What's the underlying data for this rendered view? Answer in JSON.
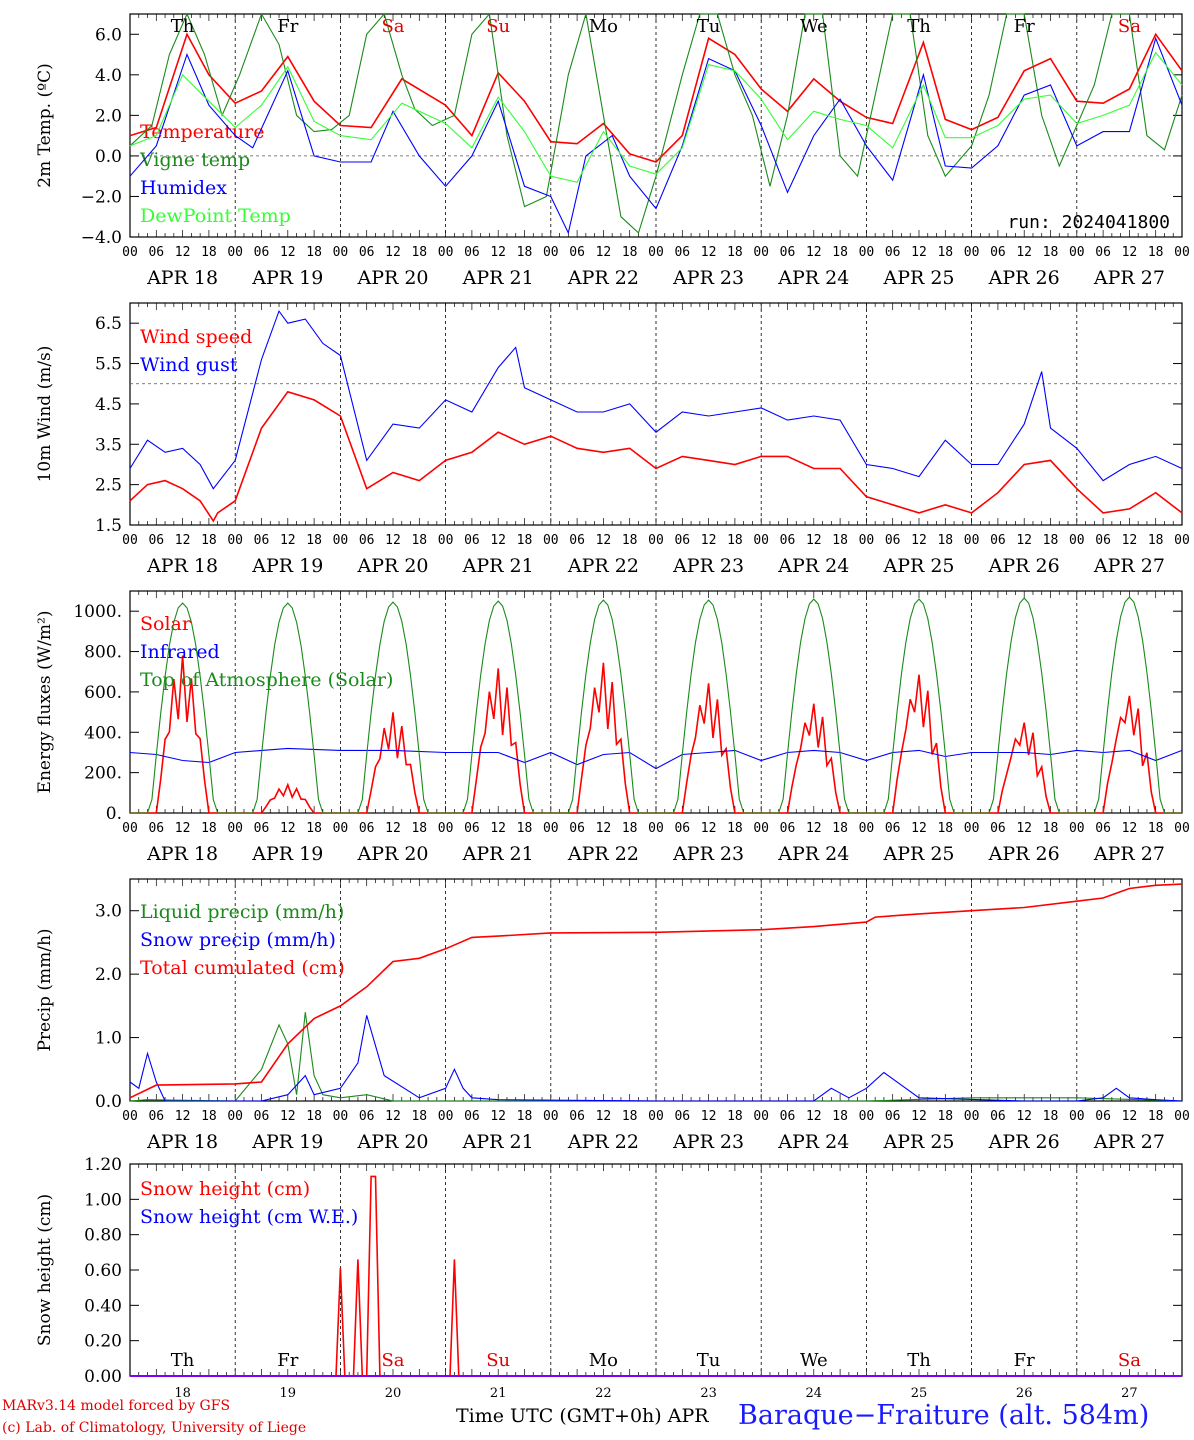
{
  "run_label": "run: 2024041800",
  "x_axis_title": "Time UTC (GMT+0h)",
  "month_label": "APR",
  "station": "Baraque−Fraiture (alt. 584m)",
  "credit_line1": "MARv3.14 model forced by GFS",
  "credit_line2": "(c) Lab. of Climatology, University of Liege",
  "hour_ticks": [
    "00",
    "06",
    "12",
    "18"
  ],
  "day_labels": [
    "APR 18",
    "APR 19",
    "APR 20",
    "APR 21",
    "APR 22",
    "APR 23",
    "APR 24",
    "APR 25",
    "APR 26",
    "APR 27"
  ],
  "day_numbers": [
    "18",
    "19",
    "20",
    "21",
    "22",
    "23",
    "24",
    "25",
    "26",
    "27"
  ],
  "weekdays": [
    {
      "label": "Th",
      "color": "#000000"
    },
    {
      "label": "Fr",
      "color": "#000000"
    },
    {
      "label": "Sa",
      "color": "#e00000"
    },
    {
      "label": "Su",
      "color": "#e00000"
    },
    {
      "label": "Mo",
      "color": "#000000"
    },
    {
      "label": "Tu",
      "color": "#000000"
    },
    {
      "label": "We",
      "color": "#000000"
    },
    {
      "label": "Th",
      "color": "#000000"
    },
    {
      "label": "Fr",
      "color": "#000000"
    },
    {
      "label": "Sa",
      "color": "#e00000"
    }
  ],
  "chart_data": [
    {
      "type": "line",
      "ylabel": "2m Temp. (ºC)",
      "ylim": [
        -4,
        7
      ],
      "yticks": [
        "−4.0",
        "−2.0",
        "0.0",
        "2.0",
        "4.0",
        "6.0"
      ],
      "ytick_values": [
        -4,
        -2,
        0,
        2,
        4,
        6
      ],
      "ref_line": 0,
      "x_unit": "hours since APR 18 00 UTC",
      "series": [
        {
          "name": "Temperature",
          "color": "#ff0000",
          "x": [
            0,
            6,
            13,
            18,
            24,
            30,
            36,
            42,
            48,
            55,
            62,
            72,
            78,
            84,
            90,
            96,
            102,
            108,
            114,
            120,
            126,
            132,
            138,
            144,
            150,
            156,
            162,
            168,
            174,
            181,
            186,
            192,
            198,
            204,
            210,
            216,
            222,
            228,
            234,
            240
          ],
          "y": [
            1.0,
            1.4,
            6.0,
            4.0,
            2.6,
            3.2,
            4.9,
            2.7,
            1.5,
            1.4,
            3.8,
            2.5,
            1.0,
            4.1,
            2.7,
            0.7,
            0.6,
            1.6,
            0.1,
            -0.3,
            1.0,
            5.8,
            5.0,
            3.3,
            2.2,
            3.8,
            2.7,
            1.9,
            1.6,
            5.6,
            1.8,
            1.3,
            1.9,
            4.2,
            4.8,
            2.7,
            2.6,
            3.3,
            6.0,
            4.2
          ]
        },
        {
          "name": "Vigne temp",
          "color": "#1a8a1a",
          "x": [
            0,
            5,
            9,
            13,
            17,
            21,
            25,
            30,
            34,
            38,
            42,
            46,
            50,
            54,
            58,
            62,
            65,
            69,
            74,
            78,
            82,
            86,
            90,
            95,
            100,
            104,
            108,
            112,
            116,
            120,
            126,
            130,
            134,
            138,
            142,
            146,
            150,
            154,
            158,
            162,
            166,
            170,
            174,
            178,
            182,
            186,
            192,
            196,
            200,
            204,
            208,
            212,
            216,
            220,
            224,
            228,
            232,
            236,
            240
          ],
          "y": [
            0.5,
            1.5,
            5.0,
            7.0,
            5.0,
            2.0,
            4.0,
            7.0,
            5.5,
            2.0,
            1.2,
            1.3,
            2.0,
            6.0,
            7.0,
            4.0,
            2.3,
            1.5,
            2.0,
            6.0,
            7.0,
            1.0,
            -2.5,
            -2.0,
            4.0,
            7.0,
            2.0,
            -3.0,
            -3.8,
            -1.0,
            4.0,
            7.0,
            7.0,
            4.0,
            2.0,
            -1.5,
            2.0,
            7.0,
            7.0,
            0.0,
            -1.0,
            3.0,
            7.0,
            7.0,
            1.0,
            -1.0,
            0.5,
            3.0,
            7.0,
            7.0,
            2.0,
            -0.5,
            1.5,
            3.5,
            7.0,
            7.0,
            1.0,
            0.3,
            3.0
          ]
        },
        {
          "name": "Humidex",
          "color": "#0000ff",
          "x": [
            0,
            6,
            13,
            18,
            24,
            28,
            36,
            42,
            48,
            55,
            60,
            66,
            72,
            78,
            84,
            90,
            96,
            100,
            104,
            110,
            114,
            120,
            126,
            132,
            138,
            144,
            150,
            156,
            162,
            168,
            174,
            181,
            186,
            192,
            198,
            204,
            210,
            216,
            222,
            228,
            234,
            240
          ],
          "y": [
            -1.0,
            0.5,
            5.0,
            2.5,
            1.0,
            0.4,
            4.2,
            0.0,
            -0.3,
            -0.3,
            2.2,
            0.0,
            -1.5,
            0.0,
            2.7,
            -1.5,
            -2.0,
            -3.8,
            0.0,
            1.0,
            -1.0,
            -2.6,
            0.5,
            4.8,
            4.2,
            1.5,
            -1.8,
            1.0,
            2.8,
            0.5,
            -1.2,
            4.0,
            -0.5,
            -0.6,
            0.5,
            3.0,
            3.5,
            0.5,
            1.2,
            1.2,
            5.8,
            2.5
          ]
        },
        {
          "name": "DewPoint Temp",
          "color": "#33ff33",
          "x": [
            0,
            6,
            12,
            18,
            24,
            30,
            36,
            42,
            48,
            55,
            62,
            72,
            78,
            84,
            90,
            96,
            102,
            108,
            114,
            120,
            126,
            132,
            138,
            144,
            150,
            156,
            162,
            168,
            174,
            181,
            186,
            192,
            198,
            204,
            210,
            216,
            222,
            228,
            234,
            240
          ],
          "y": [
            0.5,
            1.0,
            4.0,
            2.7,
            1.4,
            2.5,
            4.4,
            1.7,
            1.0,
            0.8,
            2.6,
            1.6,
            0.4,
            2.9,
            1.2,
            -1.0,
            -1.3,
            1.2,
            -0.5,
            -0.9,
            0.4,
            4.5,
            4.2,
            2.8,
            0.8,
            2.2,
            1.8,
            1.5,
            0.4,
            3.5,
            0.9,
            0.9,
            1.5,
            2.8,
            3.0,
            1.6,
            2.0,
            2.5,
            5.1,
            3.5
          ]
        }
      ]
    },
    {
      "type": "line",
      "ylabel": "10m Wind (m/s)",
      "ylim": [
        1.5,
        7.0
      ],
      "yticks": [
        "1.5",
        "2.5",
        "3.5",
        "4.5",
        "5.5",
        "6.5"
      ],
      "ytick_values": [
        1.5,
        2.5,
        3.5,
        4.5,
        5.5,
        6.5
      ],
      "ref_line": 5.0,
      "series": [
        {
          "name": "Wind speed",
          "color": "#ff0000",
          "x": [
            0,
            4,
            8,
            12,
            16,
            19,
            20,
            24,
            30,
            36,
            42,
            48,
            54,
            60,
            66,
            72,
            78,
            84,
            90,
            96,
            102,
            108,
            114,
            120,
            126,
            132,
            138,
            144,
            150,
            156,
            162,
            168,
            174,
            180,
            186,
            192,
            198,
            204,
            210,
            216,
            222,
            228,
            234,
            240
          ],
          "y": [
            2.1,
            2.5,
            2.6,
            2.4,
            2.1,
            1.6,
            1.8,
            2.1,
            3.9,
            4.8,
            4.6,
            4.2,
            2.4,
            2.8,
            2.6,
            3.1,
            3.3,
            3.8,
            3.5,
            3.7,
            3.4,
            3.3,
            3.4,
            2.9,
            3.2,
            3.1,
            3.0,
            3.2,
            3.2,
            2.9,
            2.9,
            2.2,
            2.0,
            1.8,
            2.0,
            1.8,
            2.3,
            3.0,
            3.1,
            2.4,
            1.8,
            1.9,
            2.3,
            1.8
          ]
        },
        {
          "name": "Wind gust",
          "color": "#0000ff",
          "x": [
            0,
            4,
            8,
            12,
            16,
            19,
            24,
            30,
            34,
            36,
            40,
            44,
            48,
            54,
            60,
            66,
            72,
            78,
            84,
            88,
            90,
            96,
            102,
            108,
            114,
            120,
            126,
            132,
            138,
            144,
            150,
            156,
            162,
            168,
            174,
            180,
            186,
            192,
            198,
            204,
            208,
            210,
            216,
            222,
            228,
            234,
            240
          ],
          "y": [
            2.9,
            3.6,
            3.3,
            3.4,
            3.0,
            2.4,
            3.1,
            5.6,
            6.8,
            6.5,
            6.6,
            6.0,
            5.7,
            3.1,
            4.0,
            3.9,
            4.6,
            4.3,
            5.4,
            5.9,
            4.9,
            4.6,
            4.3,
            4.3,
            4.5,
            3.8,
            4.3,
            4.2,
            4.3,
            4.4,
            4.1,
            4.2,
            4.1,
            3.0,
            2.9,
            2.7,
            3.6,
            3.0,
            3.0,
            4.0,
            5.3,
            3.9,
            3.4,
            2.6,
            3.0,
            3.2,
            2.9
          ]
        }
      ]
    },
    {
      "type": "line",
      "ylabel": "Energy fluxes (W/m²)",
      "ylim": [
        0,
        1100
      ],
      "yticks": [
        "0.",
        "200.",
        "400.",
        "600.",
        "800.",
        "1000."
      ],
      "ytick_values": [
        0,
        200,
        400,
        600,
        800,
        1000
      ],
      "series": [
        {
          "name": "Solar",
          "color": "#ff0000",
          "peaks": [
            780,
            140,
            500,
            720,
            750,
            650,
            550,
            700,
            460,
            600
          ]
        },
        {
          "name": "Infrared",
          "color": "#0000ff",
          "x": [
            0,
            6,
            12,
            18,
            24,
            36,
            48,
            60,
            72,
            84,
            90,
            96,
            102,
            108,
            114,
            120,
            126,
            132,
            138,
            144,
            150,
            156,
            162,
            168,
            174,
            180,
            186,
            192,
            198,
            204,
            210,
            216,
            222,
            228,
            234,
            240
          ],
          "y": [
            300,
            290,
            260,
            250,
            300,
            320,
            310,
            310,
            300,
            300,
            250,
            300,
            240,
            290,
            300,
            220,
            290,
            300,
            310,
            260,
            300,
            310,
            300,
            260,
            300,
            310,
            280,
            300,
            300,
            300,
            290,
            310,
            300,
            310,
            260,
            310
          ]
        },
        {
          "name": "Top of Atmosphere (Solar)",
          "color": "#1a8a1a",
          "peaks": [
            1040,
            1040,
            1045,
            1050,
            1055,
            1055,
            1060,
            1060,
            1065,
            1070
          ]
        }
      ]
    },
    {
      "type": "line",
      "ylabel": "Precip (mm/h)",
      "ylim": [
        0,
        3.5
      ],
      "yticks": [
        "0.0",
        "1.0",
        "2.0",
        "3.0"
      ],
      "ytick_values": [
        0,
        1,
        2,
        3
      ],
      "series": [
        {
          "name": "Liquid precip (mm/h)",
          "color": "#1a8a1a",
          "x": [
            0,
            4,
            24,
            30,
            34,
            36,
            38,
            40,
            42,
            44,
            48,
            54,
            60,
            84,
            90,
            120,
            144,
            168,
            192,
            216,
            240
          ],
          "y": [
            0,
            0.02,
            0,
            0.5,
            1.2,
            0.9,
            0.1,
            1.4,
            0.4,
            0.1,
            0.05,
            0.1,
            0,
            0,
            0,
            0,
            0,
            0,
            0.05,
            0.05,
            0
          ]
        },
        {
          "name": "Snow precip (mm/h)",
          "color": "#0000ff",
          "x": [
            0,
            2,
            4,
            6,
            8,
            30,
            36,
            40,
            42,
            48,
            52,
            54,
            58,
            66,
            72,
            74,
            76,
            78,
            84,
            120,
            156,
            160,
            164,
            168,
            172,
            180,
            204,
            216,
            222,
            225,
            228,
            234,
            240
          ],
          "y": [
            0.3,
            0.2,
            0.75,
            0.3,
            0,
            0,
            0.1,
            0.4,
            0.1,
            0.2,
            0.6,
            1.35,
            0.4,
            0.05,
            0.2,
            0.5,
            0.2,
            0.05,
            0.02,
            0,
            0,
            0.2,
            0.05,
            0.2,
            0.45,
            0.05,
            0,
            0,
            0.05,
            0.2,
            0.05,
            0.02,
            0
          ]
        },
        {
          "name": "Total cumulated (cm)",
          "color": "#ff0000",
          "x": [
            0,
            6,
            24,
            30,
            36,
            42,
            48,
            54,
            60,
            66,
            72,
            78,
            84,
            96,
            120,
            144,
            156,
            168,
            170,
            180,
            192,
            204,
            216,
            222,
            228,
            234,
            240
          ],
          "y": [
            0.05,
            0.25,
            0.27,
            0.3,
            0.9,
            1.3,
            1.5,
            1.8,
            2.2,
            2.25,
            2.4,
            2.58,
            2.6,
            2.65,
            2.66,
            2.7,
            2.75,
            2.82,
            2.9,
            2.95,
            3.0,
            3.05,
            3.15,
            3.2,
            3.35,
            3.4,
            3.42
          ]
        }
      ]
    },
    {
      "type": "line",
      "ylabel": "Snow height (cm)",
      "ylim": [
        0,
        1.2
      ],
      "yticks": [
        "0.00",
        "0.20",
        "0.40",
        "0.60",
        "0.80",
        "1.00",
        "1.20"
      ],
      "ytick_values": [
        0,
        0.2,
        0.4,
        0.6,
        0.8,
        1.0,
        1.2
      ],
      "series": [
        {
          "name": "Snow height (cm)",
          "color": "#ff0000",
          "x": [
            0,
            47,
            48,
            49,
            51,
            52,
            53,
            54,
            55,
            56,
            57,
            73,
            74,
            75,
            240
          ],
          "y": [
            0,
            0,
            0.61,
            0,
            0,
            0.66,
            0,
            0,
            1.13,
            1.13,
            0,
            0,
            0.66,
            0,
            0
          ]
        },
        {
          "name": "Snow height (cm W.E.)",
          "color": "#0000ff",
          "x": [
            0,
            240
          ],
          "y": [
            0,
            0
          ]
        }
      ]
    }
  ]
}
